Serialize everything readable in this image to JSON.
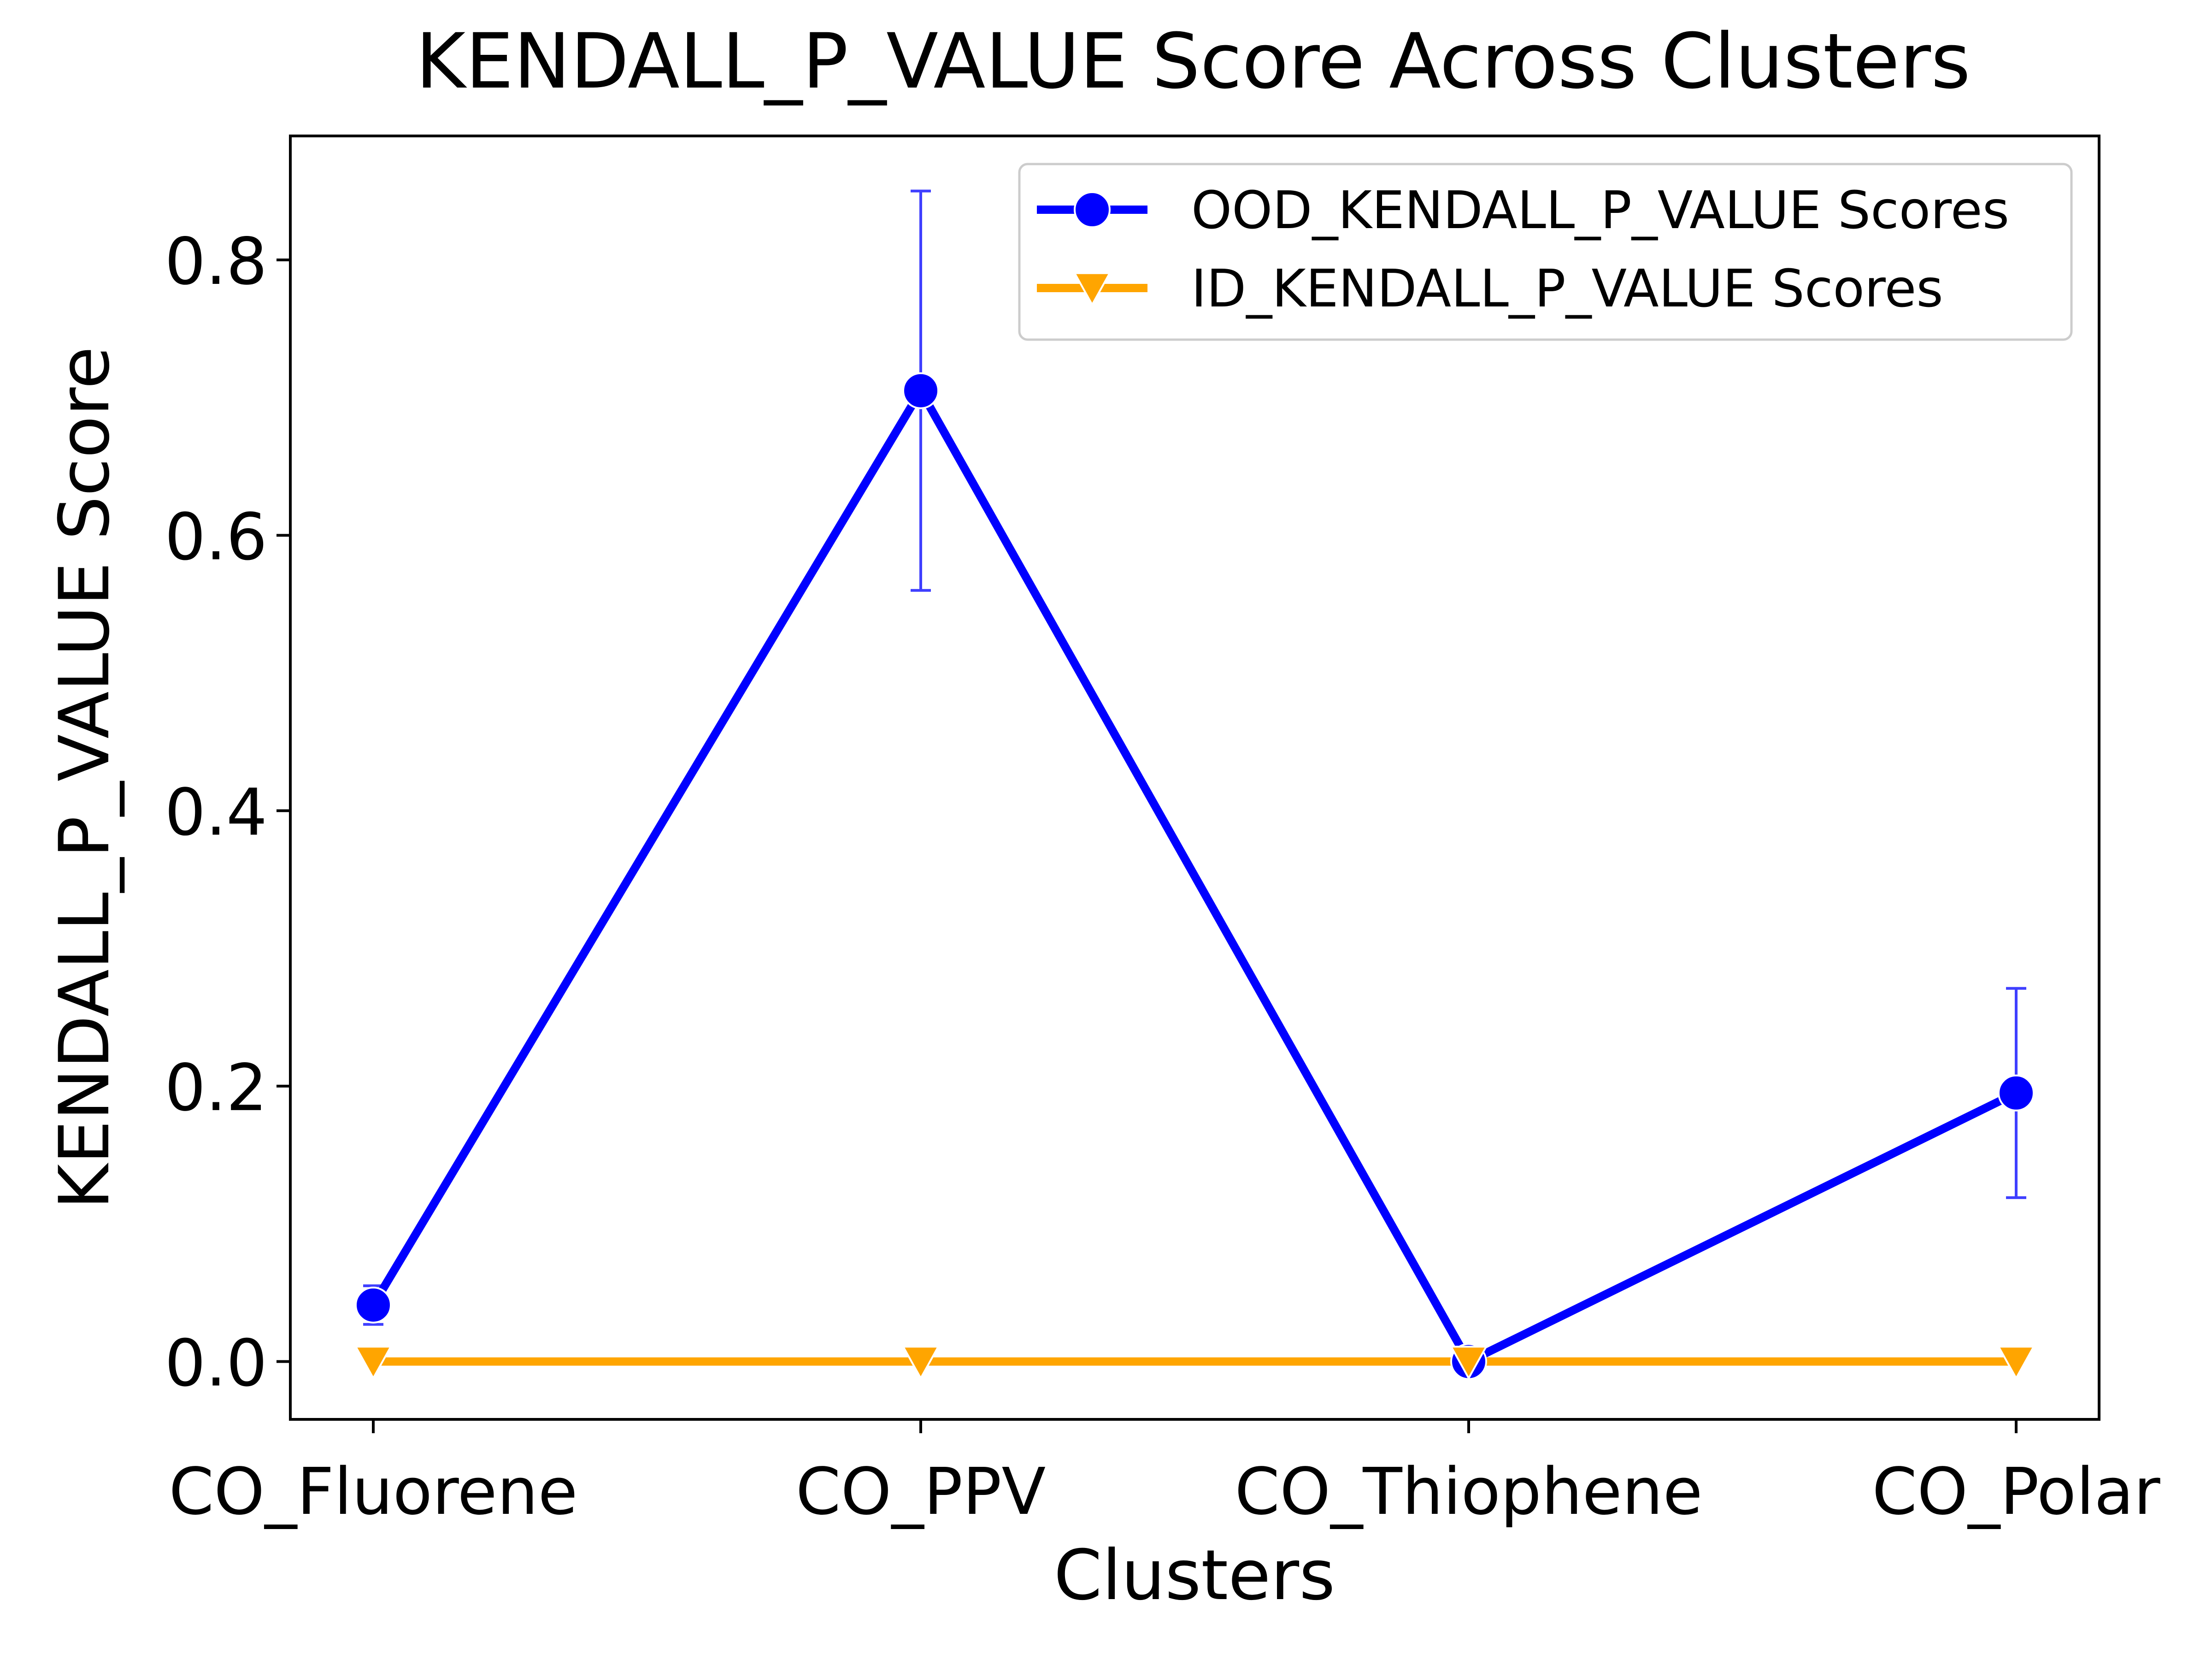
{
  "chart_data": {
    "type": "line",
    "title": "KENDALL_P_VALUE Score Across Clusters",
    "xlabel": "Clusters",
    "ylabel": "KENDALL_P_VALUE Score",
    "categories": [
      "CO_Fluorene",
      "CO_PPV",
      "CO_Thiophene",
      "CO_Polar"
    ],
    "ylim": [
      -0.042,
      0.89
    ],
    "yticks": [
      0.0,
      0.2,
      0.4,
      0.6,
      0.8
    ],
    "ytick_labels": [
      "0.0",
      "0.2",
      "0.4",
      "0.6",
      "0.8"
    ],
    "grid": false,
    "legend_position": "top-right",
    "series": [
      {
        "name": "OOD_KENDALL_P_VALUE Scores",
        "values": [
          0.041,
          0.705,
          0.0,
          0.195
        ],
        "error": [
          0.014,
          0.145,
          0.0,
          0.076
        ],
        "color": "#0000ff",
        "marker": "circle"
      },
      {
        "name": "ID_KENDALL_P_VALUE Scores",
        "values": [
          0.0,
          0.0,
          0.0,
          0.0
        ],
        "color": "#ffa500",
        "marker": "triangle-down"
      }
    ]
  }
}
